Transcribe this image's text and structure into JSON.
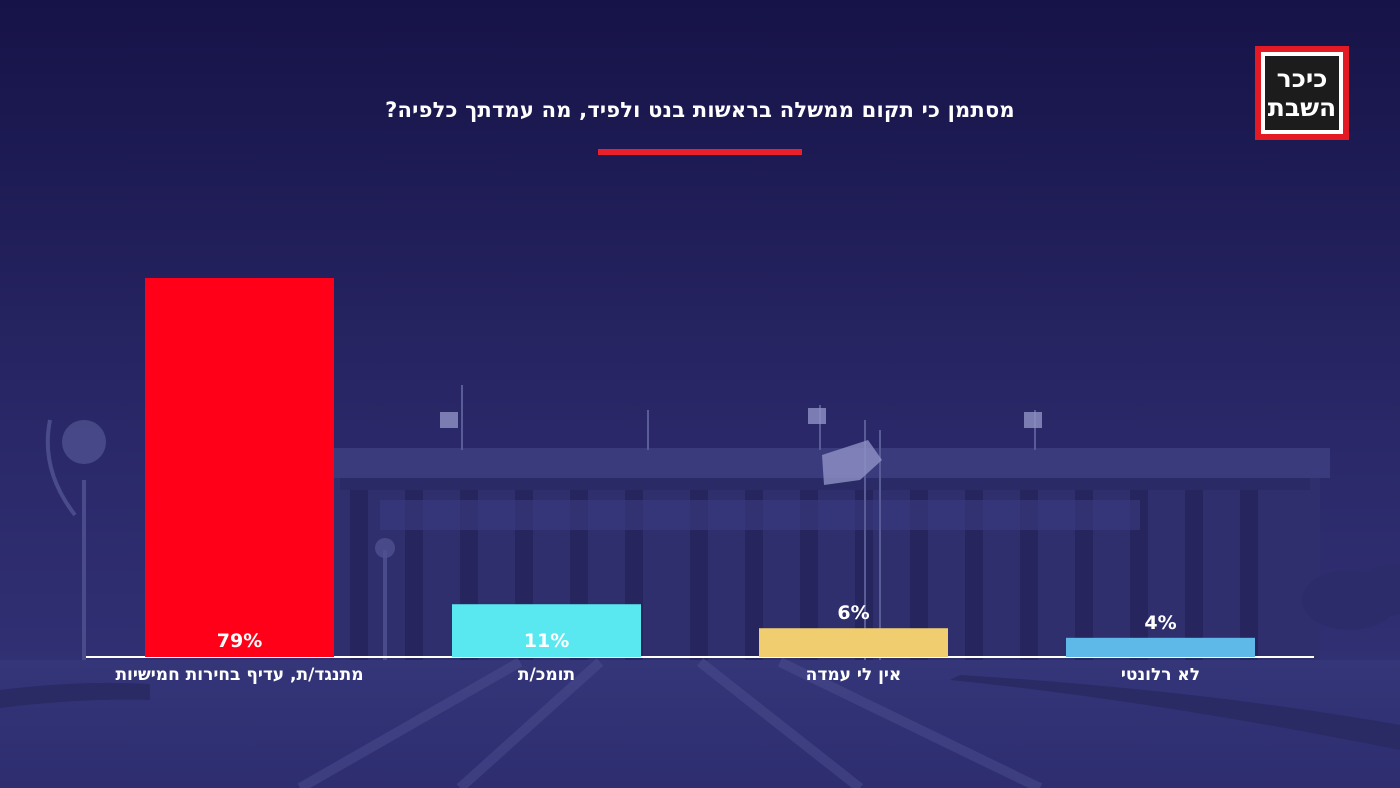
{
  "header": {
    "title": "מסתמן כי תקום ממשלה בראשות בנט ולפיד, מה עמדתך כלפיה?"
  },
  "logo": {
    "line1": "כיכר",
    "line2": "השבת",
    "colors": {
      "frame": "#e31a23",
      "core": "#1c1c1c",
      "text": "#ffffff"
    }
  },
  "colors": {
    "background": "#201c5a",
    "accent": "#e8202b",
    "baseline": "#ffffff"
  },
  "chart_data": {
    "type": "bar",
    "title": "מסתמן כי תקום ממשלה בראשות בנט ולפיד, מה עמדתך כלפיה?",
    "categories": [
      "מתנגד/ת, עדיף בחירות חמישיות",
      "תומכ/ת",
      "אין לי עמדה",
      "לא רלונטי"
    ],
    "values": [
      79,
      11,
      6,
      4
    ],
    "value_labels": [
      "79%",
      "11%",
      "6%",
      "4%"
    ],
    "bar_colors": [
      "#ff0018",
      "#5ae8f0",
      "#f0cd6e",
      "#5eb8e8"
    ],
    "value_label_placement": [
      "inside",
      "inside",
      "above",
      "above"
    ],
    "value_label_colors": [
      "#ffffff",
      "#ffffff",
      "#ffffff",
      "#ffffff"
    ],
    "xlabel": "",
    "ylabel": "",
    "ylim": [
      0,
      79
    ],
    "grid": false,
    "legend": "none"
  }
}
